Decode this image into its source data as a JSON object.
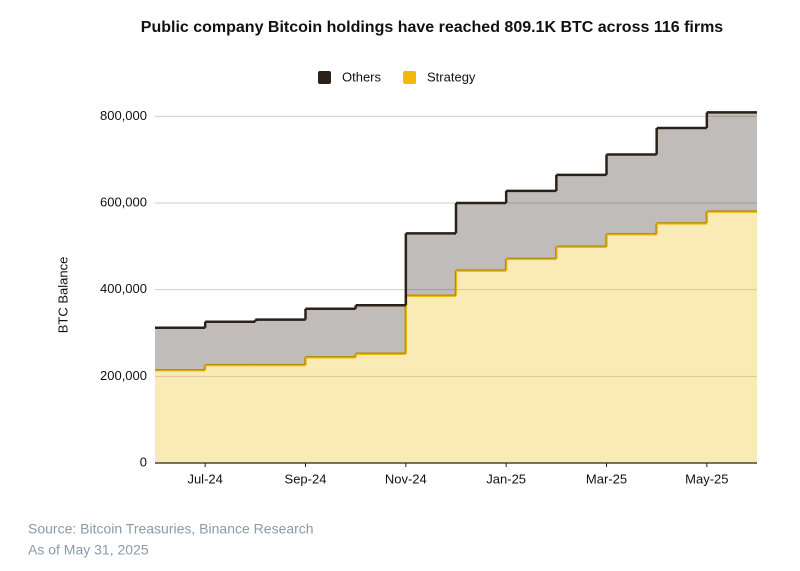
{
  "chart_data": {
    "type": "stacked-step-area",
    "title": "Public company Bitcoin holdings have reached 809.1K BTC across 116 firms",
    "y_label": "BTC Balance",
    "x": [
      "2024-06",
      "2024-07",
      "2024-08",
      "2024-09",
      "2024-10",
      "2024-11",
      "2024-12",
      "2025-01",
      "2025-02",
      "2025-03",
      "2025-04",
      "2025-05"
    ],
    "xlim": [
      "2024-06",
      "2025-06"
    ],
    "xticks": [
      {
        "value": "2024-07",
        "label": "Jul-24"
      },
      {
        "value": "2024-09",
        "label": "Sep-24"
      },
      {
        "value": "2024-11",
        "label": "Nov-24"
      },
      {
        "value": "2025-01",
        "label": "Jan-25"
      },
      {
        "value": "2025-03",
        "label": "Mar-25"
      },
      {
        "value": "2025-05",
        "label": "May-25"
      }
    ],
    "ylim": [
      0,
      840000
    ],
    "yticks": [
      0,
      {
        "value": 200000,
        "label": "200,000"
      },
      {
        "value": 400000,
        "label": "400,000"
      },
      {
        "value": 600000,
        "label": "600,000"
      },
      {
        "value": 800000,
        "label": "800,000"
      }
    ],
    "grid": true,
    "legend_position": "top",
    "series": [
      {
        "name": "Strategy",
        "color": "#f0b90b",
        "values": [
          214000,
          226000,
          226000,
          244000,
          252000,
          386000,
          444000,
          471000,
          499000,
          528000,
          553000,
          580000
        ]
      },
      {
        "name": "Others",
        "color": "#2b2118",
        "values": [
          98000,
          100000,
          105000,
          112000,
          112000,
          144000,
          156000,
          157000,
          166000,
          184000,
          220000,
          229000
        ]
      }
    ],
    "source": "Source: Bitcoin Treasuries, Binance Research",
    "note": "As of May 31, 2025"
  }
}
